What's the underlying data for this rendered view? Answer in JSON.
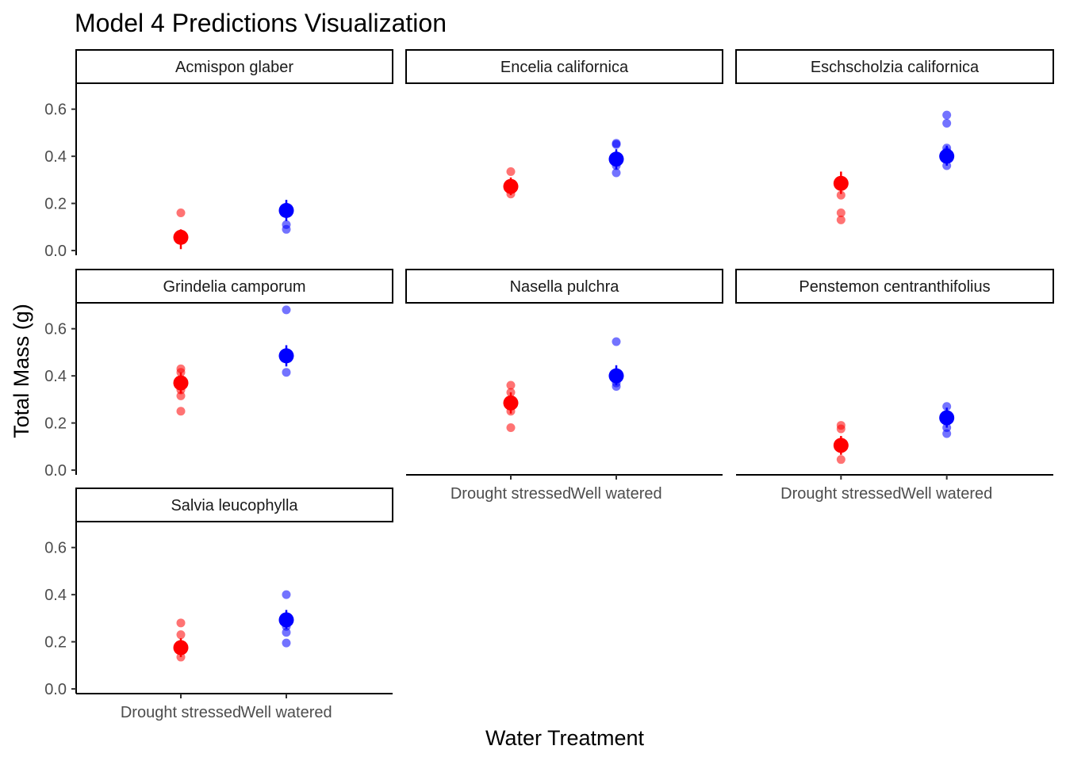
{
  "chart_data": {
    "type": "scatter",
    "title": "Model 4 Predictions Visualization",
    "xlabel": "Water Treatment",
    "ylabel": "Total Mass (g)",
    "categories": [
      "Drought stressed",
      "Well watered"
    ],
    "ylim": [
      -0.02,
      0.71
    ],
    "yticks": [
      0.0,
      0.2,
      0.4,
      0.6
    ],
    "ytick_labels": [
      "0.0",
      "0.2",
      "0.4",
      "0.6"
    ],
    "grid": false,
    "legend": "none",
    "colors": {
      "Drought stressed": "#ff0000",
      "Well watered": "#0000ff",
      "raw_point_opacity": 0.55
    },
    "facets": [
      {
        "name": "Acmispon glaber",
        "observed": {
          "Drought stressed": [
            0.16,
            0.07,
            0.06,
            0.05
          ],
          "Well watered": [
            0.11,
            0.09
          ]
        },
        "predicted": {
          "Drought stressed": {
            "mean": 0.056,
            "lower": 0.006,
            "upper": 0.09
          },
          "Well watered": {
            "mean": 0.17,
            "lower": 0.125,
            "upper": 0.215
          }
        }
      },
      {
        "name": "Encelia californica",
        "observed": {
          "Drought stressed": [
            0.335,
            0.275,
            0.24
          ],
          "Well watered": [
            0.455,
            0.45,
            0.36,
            0.33
          ]
        },
        "predicted": {
          "Drought stressed": {
            "mean": 0.272,
            "lower": 0.235,
            "upper": 0.31
          },
          "Well watered": {
            "mean": 0.388,
            "lower": 0.345,
            "upper": 0.43
          }
        }
      },
      {
        "name": "Eschscholzia californica",
        "observed": {
          "Drought stressed": [
            0.29,
            0.235,
            0.16,
            0.13
          ],
          "Well watered": [
            0.575,
            0.54,
            0.435,
            0.42,
            0.36
          ]
        },
        "predicted": {
          "Drought stressed": {
            "mean": 0.285,
            "lower": 0.24,
            "upper": 0.335
          },
          "Well watered": {
            "mean": 0.4,
            "lower": 0.36,
            "upper": 0.445
          }
        }
      },
      {
        "name": "Grindelia camporum",
        "observed": {
          "Drought stressed": [
            0.43,
            0.415,
            0.34,
            0.315,
            0.25
          ],
          "Well watered": [
            0.68,
            0.415
          ]
        },
        "predicted": {
          "Drought stressed": {
            "mean": 0.37,
            "lower": 0.325,
            "upper": 0.415
          },
          "Well watered": {
            "mean": 0.485,
            "lower": 0.44,
            "upper": 0.53
          }
        }
      },
      {
        "name": "Nasella pulchra",
        "observed": {
          "Drought stressed": [
            0.36,
            0.33,
            0.25,
            0.18
          ],
          "Well watered": [
            0.545,
            0.37,
            0.355
          ]
        },
        "predicted": {
          "Drought stressed": {
            "mean": 0.285,
            "lower": 0.24,
            "upper": 0.33
          },
          "Well watered": {
            "mean": 0.4,
            "lower": 0.36,
            "upper": 0.445
          }
        }
      },
      {
        "name": "Penstemon centranthifolius",
        "observed": {
          "Drought stressed": [
            0.19,
            0.175,
            0.045
          ],
          "Well watered": [
            0.27,
            0.18,
            0.155
          ]
        },
        "predicted": {
          "Drought stressed": {
            "mean": 0.105,
            "lower": 0.065,
            "upper": 0.145
          },
          "Well watered": {
            "mean": 0.222,
            "lower": 0.18,
            "upper": 0.265
          }
        }
      },
      {
        "name": "Salvia leucophylla",
        "observed": {
          "Drought stressed": [
            0.28,
            0.23,
            0.135
          ],
          "Well watered": [
            0.4,
            0.265,
            0.24,
            0.195
          ]
        },
        "predicted": {
          "Drought stressed": {
            "mean": 0.175,
            "lower": 0.135,
            "upper": 0.215
          },
          "Well watered": {
            "mean": 0.293,
            "lower": 0.255,
            "upper": 0.335
          }
        }
      }
    ]
  }
}
